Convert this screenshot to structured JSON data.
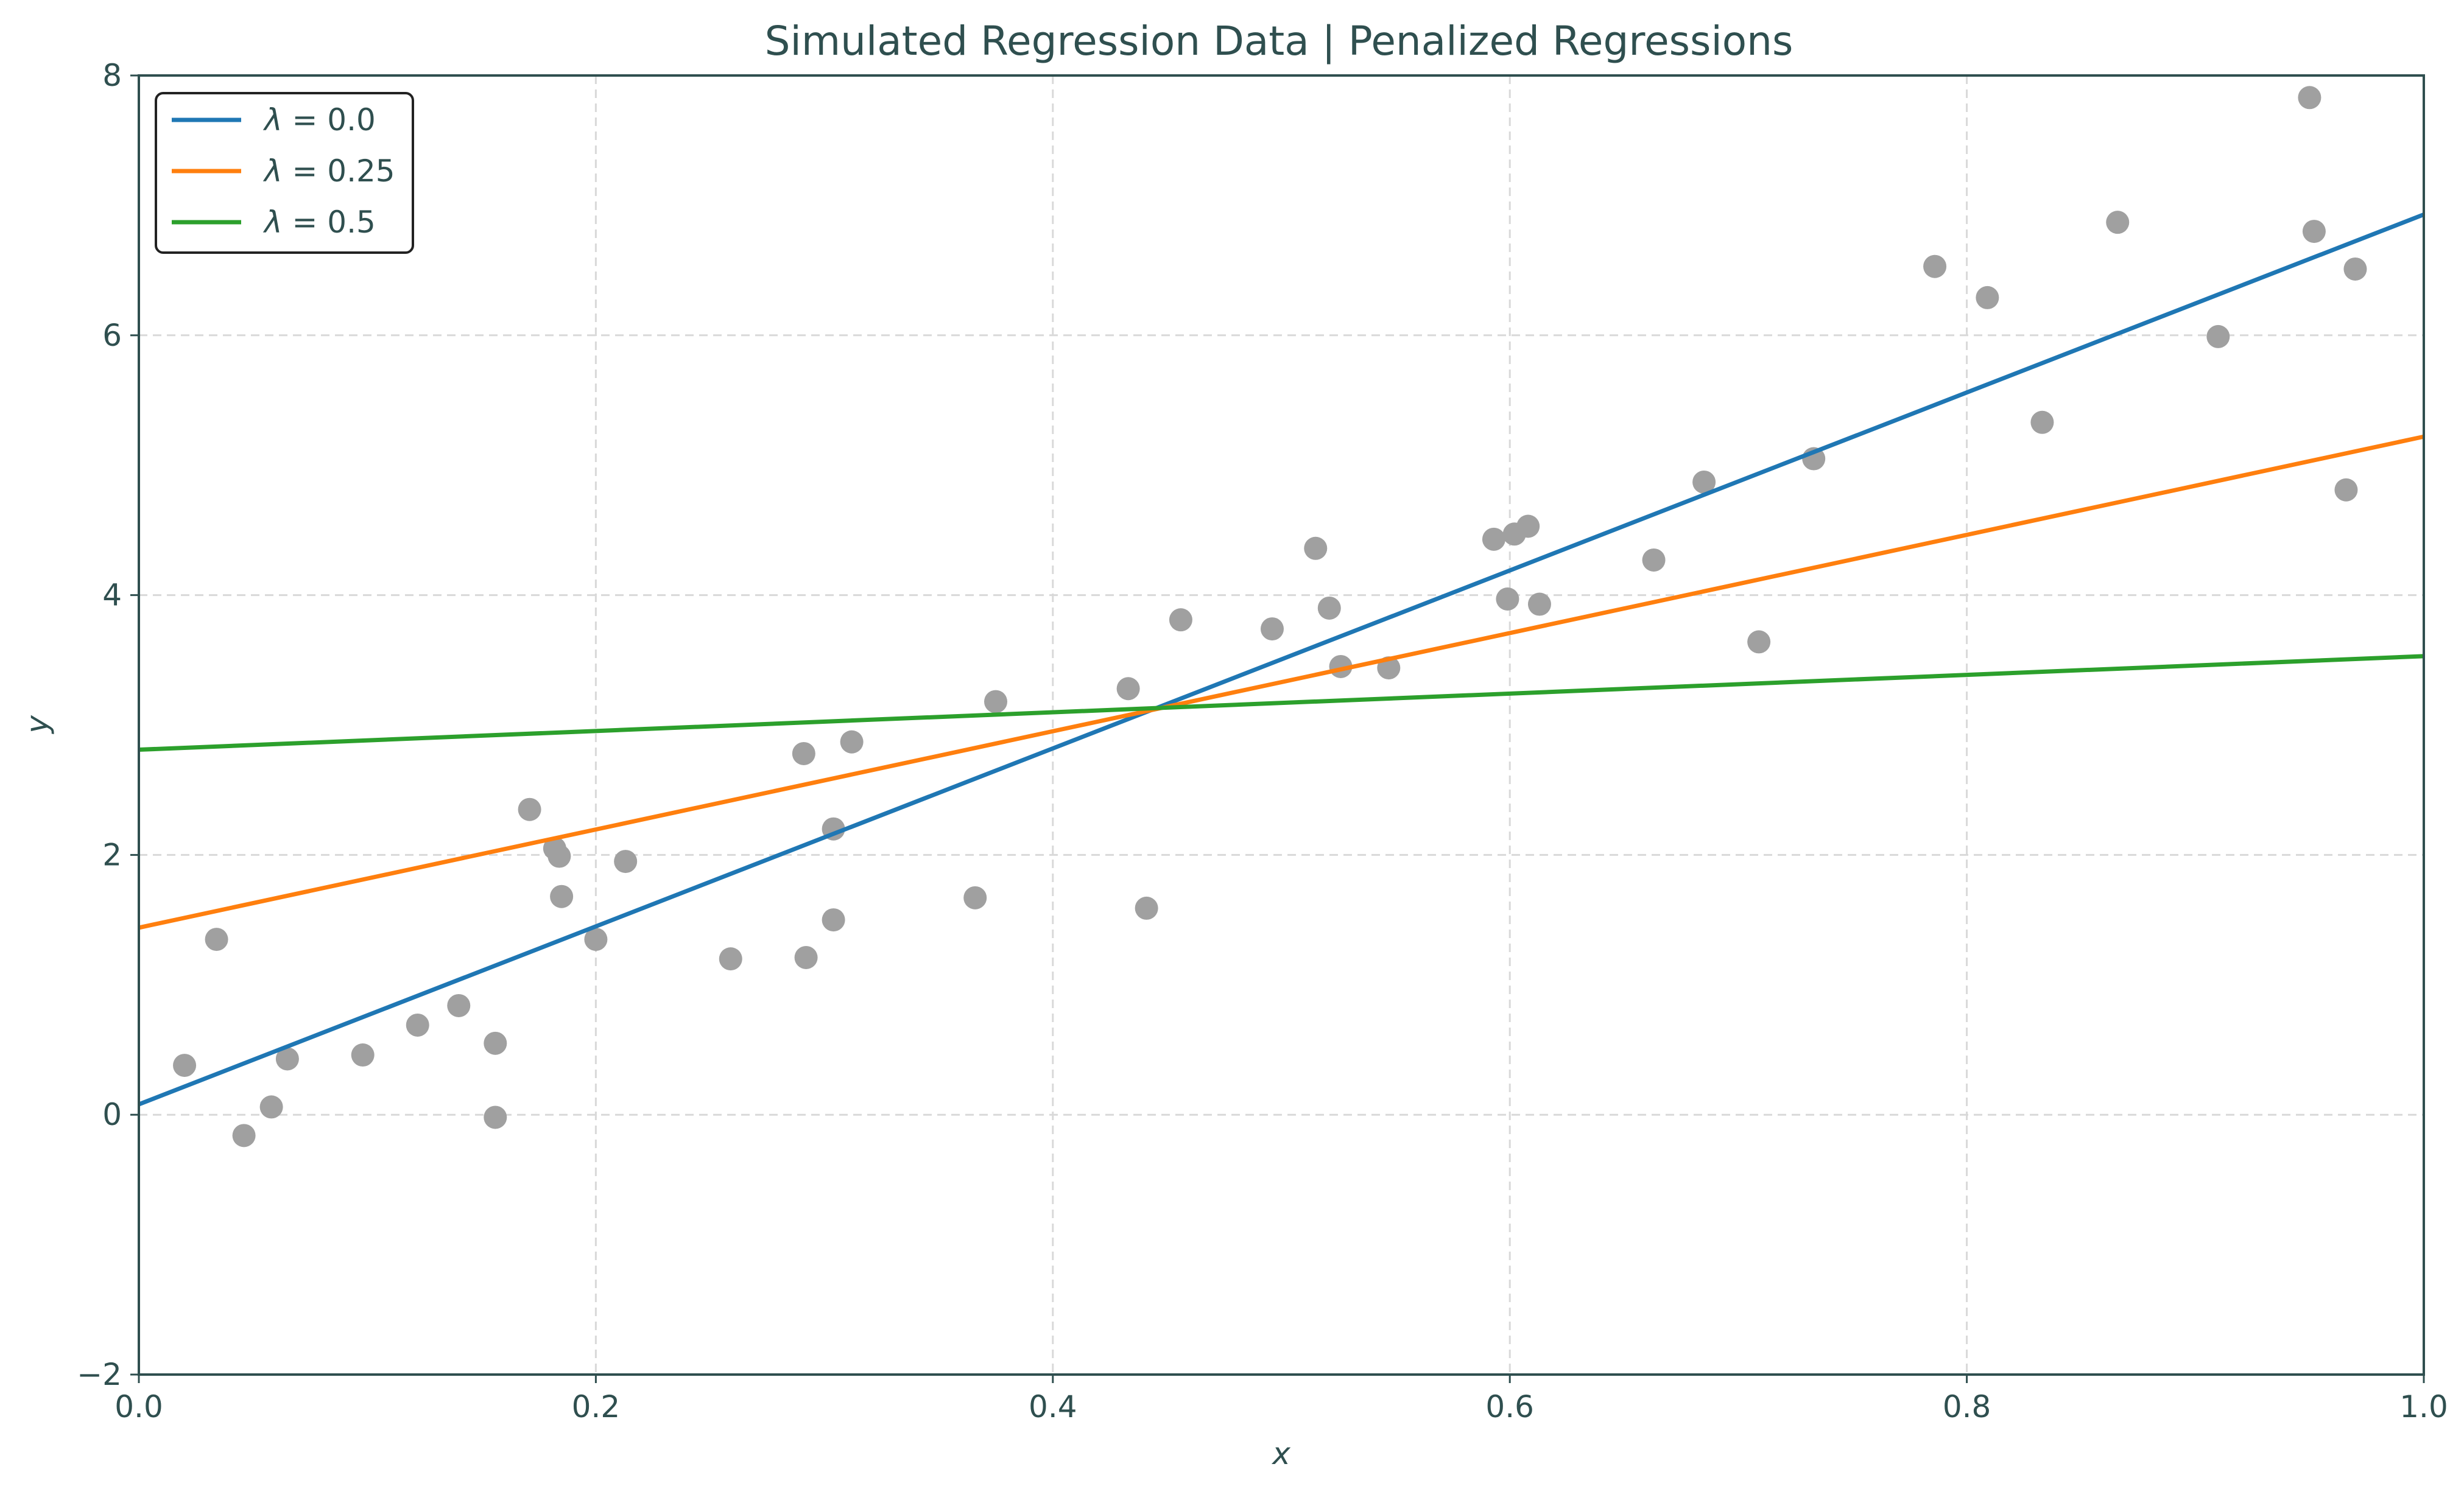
{
  "chart_data": {
    "type": "scatter",
    "title": "Simulated Regression Data | Penalized Regressions",
    "xlabel": "x",
    "ylabel": "y",
    "xlim": [
      0.0,
      1.0
    ],
    "ylim": [
      -2,
      8
    ],
    "x_ticks": [
      0.0,
      0.2,
      0.4,
      0.6,
      0.8,
      1.0
    ],
    "x_tick_labels": [
      "0.0",
      "0.2",
      "0.4",
      "0.6",
      "0.8",
      "1.0"
    ],
    "y_ticks": [
      -2,
      0,
      2,
      4,
      6,
      8
    ],
    "y_tick_labels": [
      "−2",
      "0",
      "2",
      "4",
      "6",
      "8"
    ],
    "grid": true,
    "legend_position": "top-left",
    "scatter": {
      "color": "#a0a0a0",
      "points": [
        [
          0.02,
          0.38
        ],
        [
          0.034,
          1.35
        ],
        [
          0.046,
          -0.16
        ],
        [
          0.058,
          0.06
        ],
        [
          0.065,
          0.43
        ],
        [
          0.098,
          0.46
        ],
        [
          0.122,
          0.69
        ],
        [
          0.14,
          0.84
        ],
        [
          0.156,
          0.55
        ],
        [
          0.156,
          -0.02
        ],
        [
          0.171,
          2.35
        ],
        [
          0.182,
          2.05
        ],
        [
          0.184,
          1.99
        ],
        [
          0.185,
          1.68
        ],
        [
          0.2,
          1.35
        ],
        [
          0.213,
          1.95
        ],
        [
          0.259,
          1.2
        ],
        [
          0.291,
          2.78
        ],
        [
          0.292,
          1.21
        ],
        [
          0.304,
          2.2
        ],
        [
          0.304,
          1.5
        ],
        [
          0.312,
          2.87
        ],
        [
          0.366,
          1.67
        ],
        [
          0.375,
          3.18
        ],
        [
          0.433,
          3.28
        ],
        [
          0.441,
          1.59
        ],
        [
          0.456,
          3.81
        ],
        [
          0.496,
          3.74
        ],
        [
          0.515,
          4.36
        ],
        [
          0.521,
          3.9
        ],
        [
          0.526,
          3.45
        ],
        [
          0.547,
          3.44
        ],
        [
          0.593,
          4.43
        ],
        [
          0.599,
          3.97
        ],
        [
          0.602,
          4.47
        ],
        [
          0.608,
          4.53
        ],
        [
          0.613,
          3.93
        ],
        [
          0.663,
          4.27
        ],
        [
          0.685,
          4.87
        ],
        [
          0.709,
          3.64
        ],
        [
          0.733,
          5.05
        ],
        [
          0.786,
          6.53
        ],
        [
          0.809,
          6.29
        ],
        [
          0.833,
          5.33
        ],
        [
          0.866,
          6.87
        ],
        [
          0.91,
          5.99
        ],
        [
          0.95,
          7.83
        ],
        [
          0.952,
          6.8
        ],
        [
          0.966,
          4.81
        ],
        [
          0.97,
          6.51
        ]
      ]
    },
    "series": [
      {
        "name": "λ = 0.0",
        "lambda_text": "0.0",
        "color": "#1f77b4",
        "x": [
          0.0,
          1.0
        ],
        "y": [
          0.08,
          6.93
        ]
      },
      {
        "name": "λ = 0.25",
        "lambda_text": "0.25",
        "color": "#ff7f0e",
        "x": [
          0.0,
          1.0
        ],
        "y": [
          1.44,
          5.22
        ]
      },
      {
        "name": "λ = 0.5",
        "lambda_text": "0.5",
        "color": "#2ca02c",
        "x": [
          0.0,
          1.0
        ],
        "y": [
          2.81,
          3.53
        ]
      }
    ],
    "axis_color": "#2f4f4f",
    "grid_color": "#d9d9d9"
  }
}
